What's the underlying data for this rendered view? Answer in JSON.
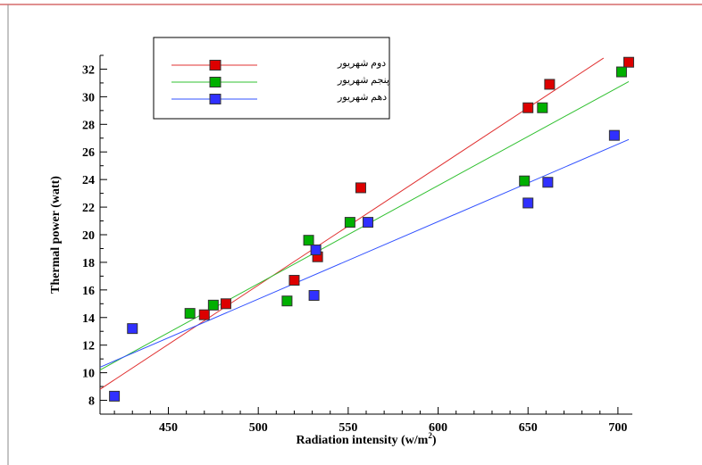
{
  "chart_data": {
    "type": "scatter",
    "title": "",
    "xlabel": "Radiation intensity (w/m",
    "xlabel_sup": "2",
    "xlabel_close": ")",
    "ylabel": "Thermal power (watt)",
    "xlim": [
      412,
      708
    ],
    "ylim": [
      7,
      33
    ],
    "xticks": [
      450,
      500,
      550,
      600,
      650,
      700
    ],
    "yticks": [
      8,
      10,
      12,
      14,
      16,
      18,
      20,
      22,
      24,
      26,
      28,
      30,
      32
    ],
    "grid": false,
    "legend_position": "top-left",
    "series": [
      {
        "name": "دوم شهریور",
        "color": "#dd0000",
        "line_color": "#e03030",
        "points": [
          [
            470,
            14.2
          ],
          [
            482,
            15.0
          ],
          [
            520,
            16.7
          ],
          [
            533,
            18.4
          ],
          [
            557,
            23.4
          ],
          [
            650,
            29.2
          ],
          [
            662,
            30.9
          ],
          [
            706,
            32.5
          ]
        ],
        "fit": [
          [
            412,
            8.8
          ],
          [
            692,
            32.8
          ]
        ]
      },
      {
        "name": "پنجم شهریور",
        "color": "#00b000",
        "line_color": "#30c030",
        "points": [
          [
            462,
            14.3
          ],
          [
            475,
            14.9
          ],
          [
            516,
            15.2
          ],
          [
            528,
            19.6
          ],
          [
            551,
            20.9
          ],
          [
            648,
            23.9
          ],
          [
            658,
            29.2
          ],
          [
            702,
            31.8
          ]
        ],
        "fit": [
          [
            412,
            10.2
          ],
          [
            706,
            31.1
          ]
        ]
      },
      {
        "name": "دهم شهریور",
        "color": "#3030ff",
        "line_color": "#3050ff",
        "points": [
          [
            420,
            8.3
          ],
          [
            430,
            13.2
          ],
          [
            531,
            15.6
          ],
          [
            532,
            18.9
          ],
          [
            561,
            20.9
          ],
          [
            650,
            22.3
          ],
          [
            661,
            23.8
          ],
          [
            698,
            27.2
          ]
        ],
        "fit": [
          [
            412,
            10.4
          ],
          [
            706,
            26.9
          ]
        ]
      }
    ]
  }
}
